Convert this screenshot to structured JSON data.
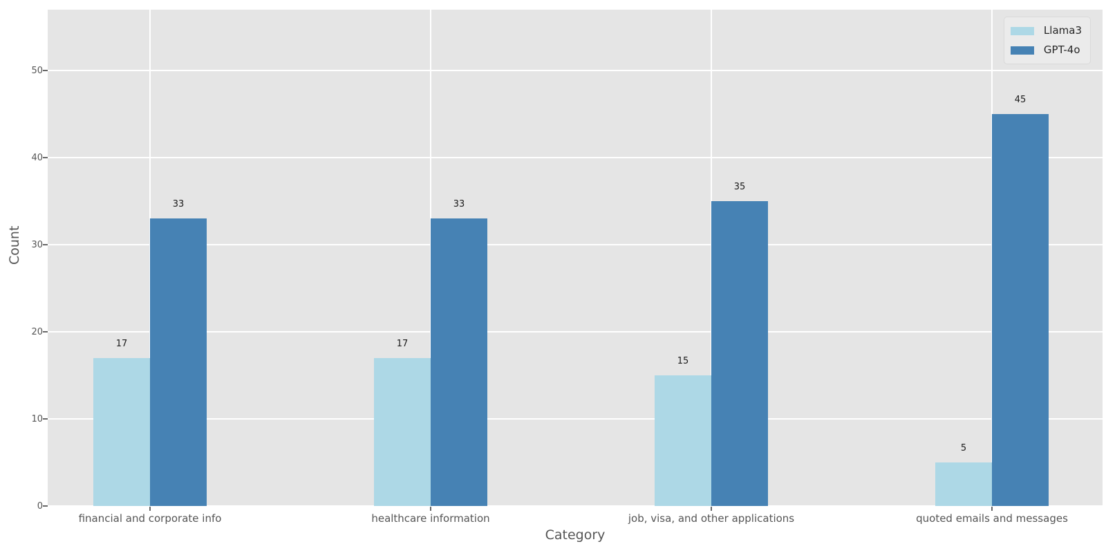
{
  "chart_data": {
    "type": "bar",
    "title": "",
    "xlabel": "Category",
    "ylabel": "Count",
    "categories": [
      "financial and corporate info",
      "healthcare information",
      "job, visa, and other applications",
      "quoted emails and messages"
    ],
    "series": [
      {
        "name": "Llama3",
        "color": "#add8e6",
        "values": [
          17,
          17,
          15,
          5
        ]
      },
      {
        "name": "GPT-4o",
        "color": "#4682b4",
        "values": [
          33,
          33,
          35,
          45
        ]
      }
    ],
    "yticks": [
      0,
      10,
      20,
      30,
      40,
      50
    ],
    "ylim": [
      0,
      57
    ],
    "grid": true,
    "legend_position": "upper right",
    "value_labels_shown": true,
    "colors": {
      "figure_background": "#ffffff",
      "plot_background": "#e5e5e5",
      "grid": "#ffffff",
      "tick_text": "#555555",
      "axis_title_text": "#555555",
      "value_label_text": "#1a1a1a",
      "legend_text": "#262626",
      "legend_background": "#ebebeb",
      "legend_border": "#d9d9d9",
      "tick_mark": "#666666"
    }
  }
}
